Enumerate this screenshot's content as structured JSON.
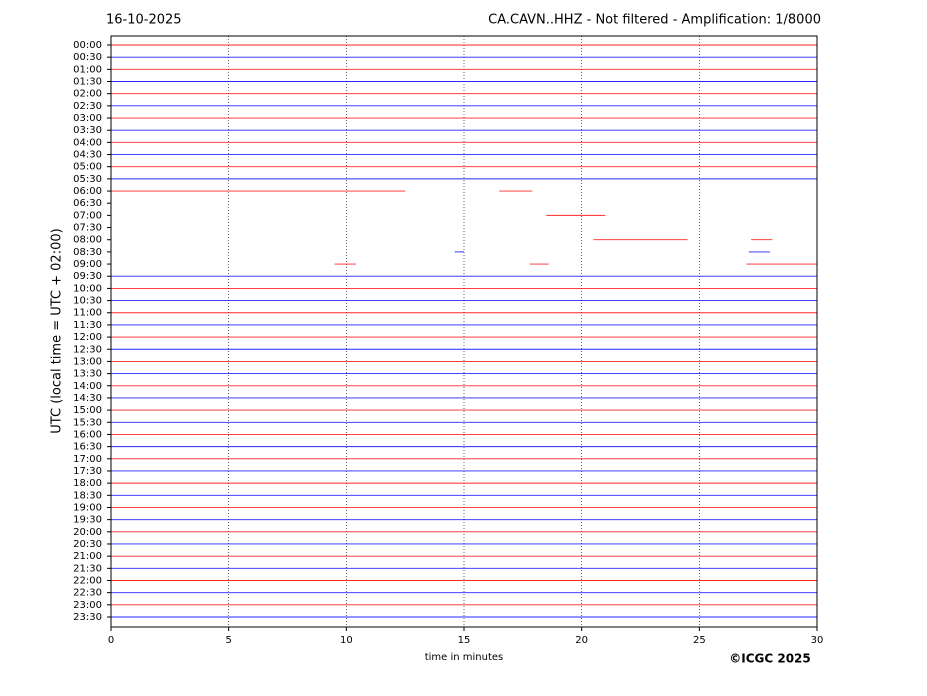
{
  "chart_data": {
    "type": "helicorder",
    "date": "16-10-2025",
    "title": "CA.CAVN..HHZ - Not filtered - Amplification: 1/8000",
    "y_label": "UTC (local time = UTC + 02:00)",
    "x_label": "time in minutes",
    "credit": "©ICGC 2025",
    "rows": [
      "00:00",
      "00:30",
      "01:00",
      "01:30",
      "02:00",
      "02:30",
      "03:00",
      "03:30",
      "04:00",
      "04:30",
      "05:00",
      "05:30",
      "06:00",
      "06:30",
      "07:00",
      "07:30",
      "08:00",
      "08:30",
      "09:00",
      "09:30",
      "10:00",
      "10:30",
      "11:00",
      "11:30",
      "12:00",
      "12:30",
      "13:00",
      "13:30",
      "14:00",
      "14:30",
      "15:00",
      "15:30",
      "16:00",
      "16:30",
      "17:00",
      "17:30",
      "18:00",
      "18:30",
      "19:00",
      "19:30",
      "20:00",
      "20:30",
      "21:00",
      "21:30",
      "22:00",
      "22:30",
      "23:00",
      "23:30"
    ],
    "segments": [
      [
        [
          0,
          30
        ]
      ],
      [
        [
          0,
          30
        ]
      ],
      [
        [
          0,
          30
        ]
      ],
      [
        [
          0,
          30
        ]
      ],
      [
        [
          0,
          30
        ]
      ],
      [
        [
          0,
          30
        ]
      ],
      [
        [
          0,
          30
        ]
      ],
      [
        [
          0,
          30
        ]
      ],
      [
        [
          0,
          30
        ]
      ],
      [
        [
          0,
          30
        ]
      ],
      [
        [
          0,
          30
        ]
      ],
      [
        [
          0,
          30
        ]
      ],
      [
        [
          0,
          12.5
        ],
        [
          16.5,
          17.9
        ]
      ],
      [],
      [
        [
          18.5,
          21
        ]
      ],
      [],
      [
        [
          20.5,
          24.5
        ],
        [
          27.2,
          28.1
        ]
      ],
      [
        [
          14.6,
          15
        ],
        [
          27.1,
          28
        ]
      ],
      [
        [
          9.5,
          10.4
        ],
        [
          17.8,
          18.6
        ],
        [
          27,
          30
        ]
      ],
      [
        [
          0,
          30
        ]
      ],
      [
        [
          0,
          30
        ]
      ],
      [
        [
          0,
          30
        ]
      ],
      [
        [
          0,
          30
        ]
      ],
      [
        [
          0,
          30
        ]
      ],
      [
        [
          0,
          30
        ]
      ],
      [
        [
          0,
          30
        ]
      ],
      [
        [
          0,
          30
        ]
      ],
      [
        [
          0,
          30
        ]
      ],
      [
        [
          0,
          30
        ]
      ],
      [
        [
          0,
          30
        ]
      ],
      [
        [
          0,
          30
        ]
      ],
      [
        [
          0,
          30
        ]
      ],
      [
        [
          0,
          30
        ]
      ],
      [
        [
          0,
          30
        ]
      ],
      [
        [
          0,
          30
        ]
      ],
      [
        [
          0,
          30
        ]
      ],
      [
        [
          0,
          30
        ]
      ],
      [
        [
          0,
          30
        ]
      ],
      [
        [
          0,
          30
        ]
      ],
      [
        [
          0,
          30
        ]
      ],
      [
        [
          0,
          30
        ]
      ],
      [
        [
          0,
          30
        ]
      ],
      [
        [
          0,
          30
        ]
      ],
      [
        [
          0,
          30
        ]
      ],
      [
        [
          0,
          30
        ]
      ],
      [
        [
          0,
          30
        ]
      ],
      [
        [
          0,
          30
        ]
      ],
      [
        [
          0,
          30
        ]
      ]
    ],
    "colors": [
      "#ff0000",
      "#0000ff"
    ],
    "xlim": [
      0,
      30
    ],
    "xticks": [
      0,
      5,
      10,
      15,
      20,
      25,
      30
    ],
    "grid": true
  }
}
